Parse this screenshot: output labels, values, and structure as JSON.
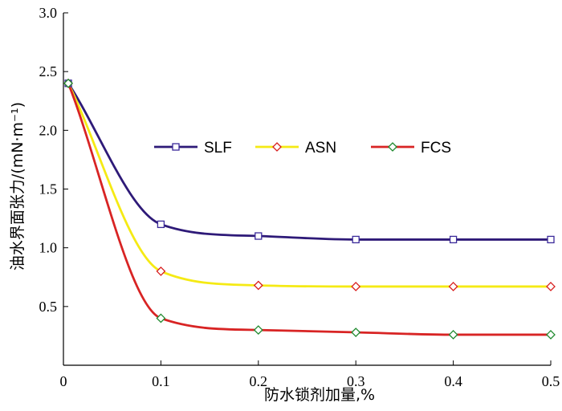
{
  "chart_data": {
    "type": "line",
    "title": "",
    "xlabel": "防水锁剂加量,%",
    "ylabel": "油水界面张力/(mN·m⁻¹)",
    "xlim": [
      0,
      0.5
    ],
    "ylim": [
      0,
      3.0
    ],
    "x_ticks": [
      "0",
      "0.1",
      "0.2",
      "0.3",
      "0.4",
      "0.5"
    ],
    "y_ticks": [
      "0.5",
      "1.0",
      "1.5",
      "2.0",
      "2.5",
      "3.0"
    ],
    "x": [
      0.005,
      0.1,
      0.2,
      0.3,
      0.4,
      0.5
    ],
    "series": [
      {
        "name": "SLF",
        "marker": "square",
        "color": "#2e1a78",
        "marker_color": "#3b2a9a",
        "values": [
          2.4,
          1.2,
          1.1,
          1.07,
          1.07,
          1.07
        ]
      },
      {
        "name": "ASN",
        "marker": "diamond",
        "color": "#f5ea14",
        "marker_color": "#d81e1e",
        "values": [
          2.4,
          0.8,
          0.68,
          0.67,
          0.67,
          0.67
        ]
      },
      {
        "name": "FCS",
        "marker": "diamond",
        "color": "#d82424",
        "marker_color": "#1f8a2e",
        "values": [
          2.4,
          0.4,
          0.3,
          0.28,
          0.26,
          0.26
        ]
      }
    ],
    "grid": false,
    "legend_position": "center-right"
  }
}
